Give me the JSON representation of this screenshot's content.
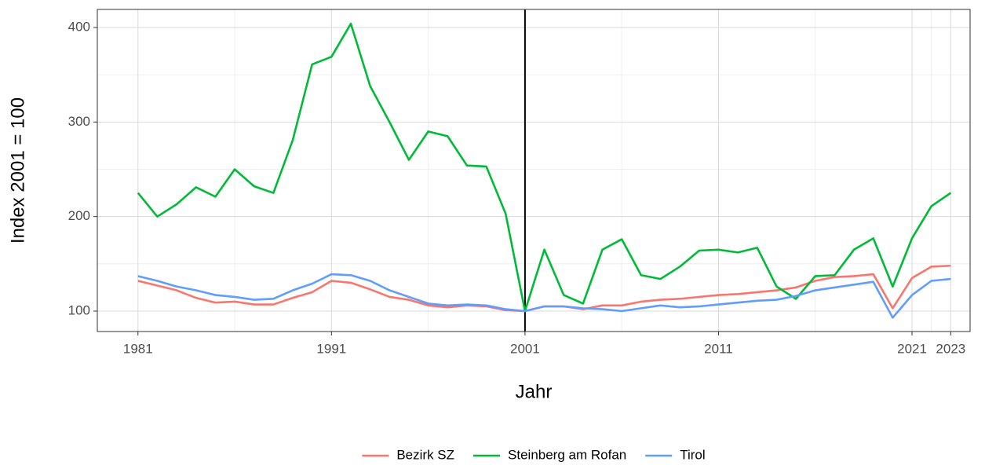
{
  "chart_data": {
    "type": "line",
    "x_label": "Jahr",
    "y_label": "Index 2001 = 100",
    "x": [
      1981,
      1982,
      1983,
      1984,
      1985,
      1986,
      1987,
      1988,
      1989,
      1990,
      1991,
      1992,
      1993,
      1994,
      1995,
      1996,
      1997,
      1998,
      1999,
      2000,
      2001,
      2002,
      2003,
      2004,
      2005,
      2006,
      2007,
      2008,
      2009,
      2010,
      2011,
      2012,
      2013,
      2014,
      2015,
      2016,
      2017,
      2018,
      2019,
      2020,
      2021,
      2022,
      2023
    ],
    "series": [
      {
        "name": "Bezirk SZ",
        "color": "#f8766d",
        "values": [
          132,
          127,
          122,
          114,
          109,
          110,
          107,
          107,
          114,
          120,
          132,
          130,
          123,
          115,
          112,
          106,
          104,
          106,
          105,
          101,
          100,
          105,
          105,
          102,
          106,
          106,
          110,
          112,
          113,
          115,
          117,
          118,
          120,
          122,
          125,
          132,
          136,
          137,
          139,
          103,
          135,
          147,
          148
        ]
      },
      {
        "name": "Steinberg am Rofan",
        "color": "#00ba38",
        "values": [
          225,
          200,
          213,
          231,
          221,
          250,
          232,
          225,
          281,
          361,
          369,
          404,
          338,
          300,
          260,
          290,
          285,
          254,
          253,
          203,
          100,
          165,
          117,
          108,
          165,
          176,
          138,
          134,
          147,
          164,
          165,
          162,
          167,
          126,
          113,
          137,
          138,
          165,
          177,
          126,
          177,
          211,
          225
        ]
      },
      {
        "name": "Tirol",
        "color": "#619cff",
        "values": [
          137,
          132,
          126,
          122,
          117,
          115,
          112,
          113,
          122,
          129,
          139,
          138,
          132,
          122,
          115,
          108,
          106,
          107,
          106,
          102,
          100,
          105,
          105,
          103,
          102,
          100,
          103,
          106,
          104,
          105,
          107,
          109,
          111,
          112,
          116,
          122,
          125,
          128,
          131,
          93,
          117,
          132,
          134
        ]
      }
    ],
    "xlim": [
      1978.9,
      2024
    ],
    "ylim": [
      78.4,
      419.1
    ],
    "xticks": [
      1981,
      1991,
      2001,
      2011,
      2021,
      2023
    ],
    "yticks": [
      100,
      200,
      300,
      400
    ],
    "vline": 2001,
    "grid": true,
    "legend": "bottom"
  }
}
